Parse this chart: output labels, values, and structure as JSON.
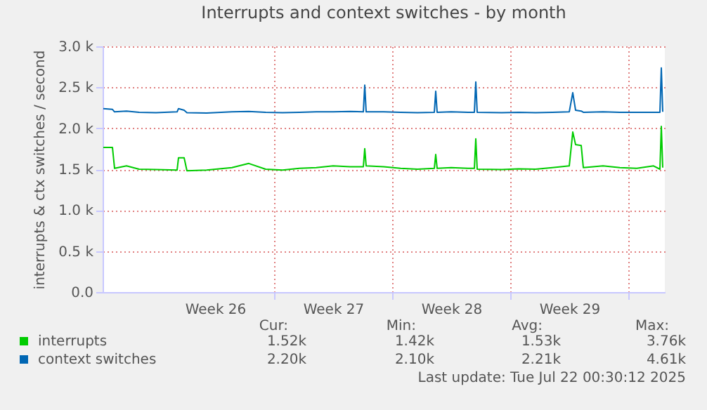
{
  "chart_data": {
    "type": "line",
    "title": "Interrupts and context switches - by month",
    "ylabel": "interrupts & ctx switches / second",
    "x": [
      "2025-06-19T21:00",
      "2025-06-20T10:00",
      "2025-06-20T13:00",
      "2025-06-21T06:00",
      "2025-06-22T00:00",
      "2025-06-23T00:00",
      "2025-06-24T06:00",
      "2025-06-24T08:00",
      "2025-06-24T16:00",
      "2025-06-24T20:00",
      "2025-06-26T00:00",
      "2025-06-27T12:00",
      "2025-06-28T12:00",
      "2025-06-29T12:00",
      "2025-06-30T12:00",
      "2025-07-01T12:00",
      "2025-07-02T12:00",
      "2025-07-03T12:00",
      "2025-07-04T12:00",
      "2025-07-05T07:00",
      "2025-07-05T09:00",
      "2025-07-05T11:00",
      "2025-07-06T12:00",
      "2025-07-07T12:00",
      "2025-07-08T12:00",
      "2025-07-09T12:00",
      "2025-07-09T14:00",
      "2025-07-09T16:00",
      "2025-07-10T12:00",
      "2025-07-11T12:00",
      "2025-07-11T21:00",
      "2025-07-11T23:00",
      "2025-07-12T01:00",
      "2025-07-13T12:00",
      "2025-07-14T12:00",
      "2025-07-15T12:00",
      "2025-07-16T12:00",
      "2025-07-17T12:00",
      "2025-07-17T17:00",
      "2025-07-17T21:00",
      "2025-07-18T05:00",
      "2025-07-18T08:00",
      "2025-07-19T12:00",
      "2025-07-20T12:00",
      "2025-07-21T12:00",
      "2025-07-22T12:00",
      "2025-07-22T21:00",
      "2025-07-22T23:00",
      "2025-07-23T01:00"
    ],
    "series": [
      {
        "name": "interrupts",
        "color": "#00cc00",
        "values": [
          1766,
          1766,
          1510,
          1540,
          1500,
          1495,
          1490,
          1640,
          1640,
          1480,
          1490,
          1520,
          1570,
          1500,
          1490,
          1510,
          1520,
          1540,
          1530,
          1530,
          1750,
          1540,
          1530,
          1510,
          1500,
          1510,
          1680,
          1510,
          1520,
          1510,
          1510,
          1870,
          1500,
          1495,
          1505,
          1500,
          1520,
          1540,
          1954,
          1800,
          1790,
          1520,
          1540,
          1520,
          1510,
          1540,
          1500,
          2023,
          1520
        ]
      },
      {
        "name": "context switches",
        "color": "#0066b3",
        "values": [
          2240,
          2230,
          2200,
          2210,
          2195,
          2190,
          2200,
          2240,
          2220,
          2190,
          2185,
          2200,
          2205,
          2195,
          2190,
          2195,
          2200,
          2200,
          2205,
          2200,
          2526,
          2200,
          2200,
          2195,
          2190,
          2195,
          2451,
          2195,
          2200,
          2195,
          2195,
          2566,
          2195,
          2190,
          2195,
          2190,
          2195,
          2200,
          2434,
          2220,
          2210,
          2195,
          2200,
          2195,
          2195,
          2195,
          2195,
          2737,
          2200
        ]
      }
    ],
    "xlim": [
      "2025-06-19T20:00",
      "2025-07-23T04:00"
    ],
    "xticks": [
      {
        "value": "2025-06-26T12:00",
        "label": "Week 26"
      },
      {
        "value": "2025-07-03T12:00",
        "label": "Week 27"
      },
      {
        "value": "2025-07-10T12:00",
        "label": "Week 28"
      },
      {
        "value": "2025-07-17T12:00",
        "label": "Week 29"
      },
      {
        "value": "2025-06-30",
        "label": null
      },
      {
        "value": "2025-07-07",
        "label": null
      },
      {
        "value": "2025-07-14",
        "label": null
      },
      {
        "value": "2025-07-21",
        "label": null
      }
    ],
    "ylim": [
      0,
      3000
    ],
    "yticks": [
      {
        "value": 0,
        "label": "0.0"
      },
      {
        "value": 500,
        "label": "0.5 k"
      },
      {
        "value": 1000,
        "label": "1.0 k"
      },
      {
        "value": 1500,
        "label": "1.5 k"
      },
      {
        "value": 2000,
        "label": "2.0 k"
      },
      {
        "value": 2500,
        "label": "2.5 k"
      },
      {
        "value": 3000,
        "label": "3.0 k"
      }
    ],
    "grid": true,
    "legend": "bottom",
    "marker": "none",
    "line_style": "solid",
    "annotations": [
      "Cur:",
      "Min:",
      "Avg:",
      "Max:",
      "1.52k",
      "1.42k",
      "1.53k",
      "3.76k",
      "2.20k",
      "2.10k",
      "2.21k",
      "4.61k",
      "Last update: Tue Jul 22 00:30:12 2025"
    ]
  }
}
